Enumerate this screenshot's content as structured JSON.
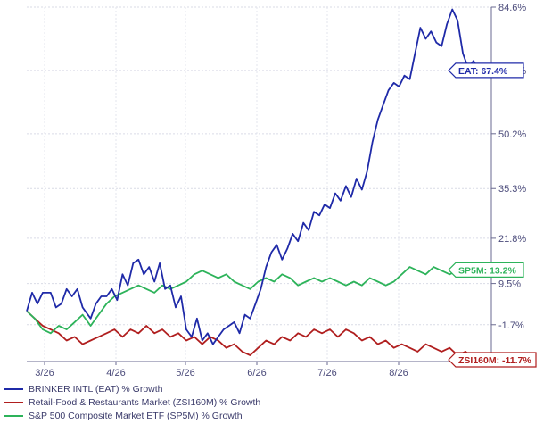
{
  "chart_data": {
    "type": "line",
    "title": "",
    "xlabel": "",
    "ylabel": "",
    "x_ticks": [
      "3/26",
      "4/26",
      "5/26",
      "6/26",
      "7/26",
      "8/26"
    ],
    "y_ticks": [
      "84.6%",
      "67.4%",
      "50.2%",
      "35.3%",
      "21.8%",
      "9.5%",
      "-1.7%",
      "-11.7%"
    ],
    "y_tick_values": [
      84.6,
      67.4,
      50.2,
      35.3,
      21.8,
      9.5,
      -1.7,
      -11.7
    ],
    "ylim": [
      -11.7,
      84.6
    ],
    "xlim": [
      0,
      170
    ],
    "grid": true,
    "legend_position": "bottom-left",
    "series": [
      {
        "name": "BRINKER INTL (EAT) % Growth",
        "flag": "EAT: 67.4%",
        "color": "#1f2aa8",
        "points": [
          [
            0,
            2
          ],
          [
            2,
            7
          ],
          [
            4,
            4
          ],
          [
            6,
            7
          ],
          [
            9,
            7
          ],
          [
            11,
            3
          ],
          [
            13,
            4
          ],
          [
            15,
            8
          ],
          [
            17,
            6
          ],
          [
            19,
            8
          ],
          [
            21,
            3
          ],
          [
            24,
            0
          ],
          [
            26,
            4
          ],
          [
            28,
            6
          ],
          [
            30,
            6
          ],
          [
            32,
            8
          ],
          [
            34,
            5
          ],
          [
            36,
            12
          ],
          [
            38,
            9
          ],
          [
            40,
            15
          ],
          [
            42,
            16
          ],
          [
            44,
            12
          ],
          [
            46,
            14
          ],
          [
            48,
            10
          ],
          [
            50,
            15
          ],
          [
            52,
            8
          ],
          [
            54,
            9
          ],
          [
            56,
            3
          ],
          [
            58,
            6
          ],
          [
            60,
            -3
          ],
          [
            62,
            -5
          ],
          [
            64,
            0
          ],
          [
            66,
            -6
          ],
          [
            68,
            -4
          ],
          [
            70,
            -7
          ],
          [
            72,
            -5
          ],
          [
            74,
            -3
          ],
          [
            76,
            -2
          ],
          [
            78,
            -1
          ],
          [
            80,
            -4
          ],
          [
            82,
            1
          ],
          [
            84,
            0
          ],
          [
            86,
            4
          ],
          [
            88,
            8
          ],
          [
            90,
            14
          ],
          [
            92,
            18
          ],
          [
            94,
            20
          ],
          [
            96,
            16
          ],
          [
            98,
            19
          ],
          [
            100,
            23
          ],
          [
            102,
            21
          ],
          [
            104,
            26
          ],
          [
            106,
            24
          ],
          [
            108,
            29
          ],
          [
            110,
            28
          ],
          [
            112,
            31
          ],
          [
            114,
            30
          ],
          [
            116,
            34
          ],
          [
            118,
            32
          ],
          [
            120,
            36
          ],
          [
            122,
            33
          ],
          [
            124,
            38
          ],
          [
            126,
            35
          ],
          [
            128,
            40
          ],
          [
            130,
            48
          ],
          [
            132,
            54
          ],
          [
            134,
            58
          ],
          [
            136,
            62
          ],
          [
            138,
            64
          ],
          [
            140,
            63
          ],
          [
            142,
            66
          ],
          [
            144,
            65
          ],
          [
            146,
            72
          ],
          [
            148,
            79
          ],
          [
            150,
            76
          ],
          [
            152,
            78
          ],
          [
            154,
            75
          ],
          [
            156,
            74
          ],
          [
            158,
            80
          ],
          [
            160,
            84
          ],
          [
            162,
            81
          ],
          [
            164,
            72
          ],
          [
            166,
            68
          ],
          [
            168,
            70
          ],
          [
            170,
            67.4
          ]
        ]
      },
      {
        "name": "Retail-Food & Restaurants Market (ZSI160M) % Growth",
        "flag": "ZSI160M: -11.7%",
        "color": "#b01e1e",
        "points": [
          [
            0,
            2
          ],
          [
            3,
            0
          ],
          [
            6,
            -2
          ],
          [
            9,
            -3
          ],
          [
            12,
            -4
          ],
          [
            15,
            -6
          ],
          [
            18,
            -5
          ],
          [
            21,
            -7
          ],
          [
            24,
            -6
          ],
          [
            27,
            -5
          ],
          [
            30,
            -4
          ],
          [
            33,
            -3
          ],
          [
            36,
            -5
          ],
          [
            39,
            -3
          ],
          [
            42,
            -4
          ],
          [
            45,
            -2
          ],
          [
            48,
            -4
          ],
          [
            51,
            -3
          ],
          [
            54,
            -5
          ],
          [
            57,
            -4
          ],
          [
            60,
            -6
          ],
          [
            63,
            -5
          ],
          [
            66,
            -7
          ],
          [
            69,
            -5
          ],
          [
            72,
            -6
          ],
          [
            75,
            -8
          ],
          [
            78,
            -7
          ],
          [
            81,
            -9
          ],
          [
            84,
            -10
          ],
          [
            87,
            -8
          ],
          [
            90,
            -6
          ],
          [
            93,
            -7
          ],
          [
            96,
            -5
          ],
          [
            99,
            -6
          ],
          [
            102,
            -4
          ],
          [
            105,
            -5
          ],
          [
            108,
            -3
          ],
          [
            111,
            -4
          ],
          [
            114,
            -3
          ],
          [
            117,
            -5
          ],
          [
            120,
            -3
          ],
          [
            123,
            -4
          ],
          [
            126,
            -6
          ],
          [
            129,
            -5
          ],
          [
            132,
            -7
          ],
          [
            135,
            -6
          ],
          [
            138,
            -8
          ],
          [
            141,
            -7
          ],
          [
            144,
            -8
          ],
          [
            147,
            -9
          ],
          [
            150,
            -7
          ],
          [
            153,
            -8
          ],
          [
            156,
            -9
          ],
          [
            159,
            -8
          ],
          [
            162,
            -10
          ],
          [
            165,
            -9
          ],
          [
            168,
            -11
          ],
          [
            170,
            -11.7
          ]
        ]
      },
      {
        "name": "S&P 500 Composite Market ETF (SP5M) % Growth",
        "flag": "SP5M: 13.2%",
        "color": "#2db35a",
        "points": [
          [
            0,
            2
          ],
          [
            3,
            0
          ],
          [
            6,
            -3
          ],
          [
            9,
            -4
          ],
          [
            12,
            -2
          ],
          [
            15,
            -3
          ],
          [
            18,
            -1
          ],
          [
            21,
            1
          ],
          [
            24,
            -2
          ],
          [
            27,
            1
          ],
          [
            30,
            4
          ],
          [
            33,
            6
          ],
          [
            36,
            7
          ],
          [
            39,
            8
          ],
          [
            42,
            9
          ],
          [
            45,
            8
          ],
          [
            48,
            7
          ],
          [
            51,
            9
          ],
          [
            54,
            8
          ],
          [
            57,
            9
          ],
          [
            60,
            10
          ],
          [
            63,
            12
          ],
          [
            66,
            13
          ],
          [
            69,
            12
          ],
          [
            72,
            11
          ],
          [
            75,
            12
          ],
          [
            78,
            10
          ],
          [
            81,
            9
          ],
          [
            84,
            8
          ],
          [
            87,
            10
          ],
          [
            90,
            11
          ],
          [
            93,
            10
          ],
          [
            96,
            12
          ],
          [
            99,
            11
          ],
          [
            102,
            9
          ],
          [
            105,
            10
          ],
          [
            108,
            11
          ],
          [
            111,
            10
          ],
          [
            114,
            11
          ],
          [
            117,
            10
          ],
          [
            120,
            9
          ],
          [
            123,
            10
          ],
          [
            126,
            9
          ],
          [
            129,
            11
          ],
          [
            132,
            10
          ],
          [
            135,
            9
          ],
          [
            138,
            10
          ],
          [
            141,
            12
          ],
          [
            144,
            14
          ],
          [
            147,
            13
          ],
          [
            150,
            12
          ],
          [
            153,
            14
          ],
          [
            156,
            13
          ],
          [
            159,
            12
          ],
          [
            162,
            13
          ],
          [
            165,
            14
          ],
          [
            168,
            13
          ],
          [
            170,
            13.2
          ]
        ]
      }
    ]
  }
}
